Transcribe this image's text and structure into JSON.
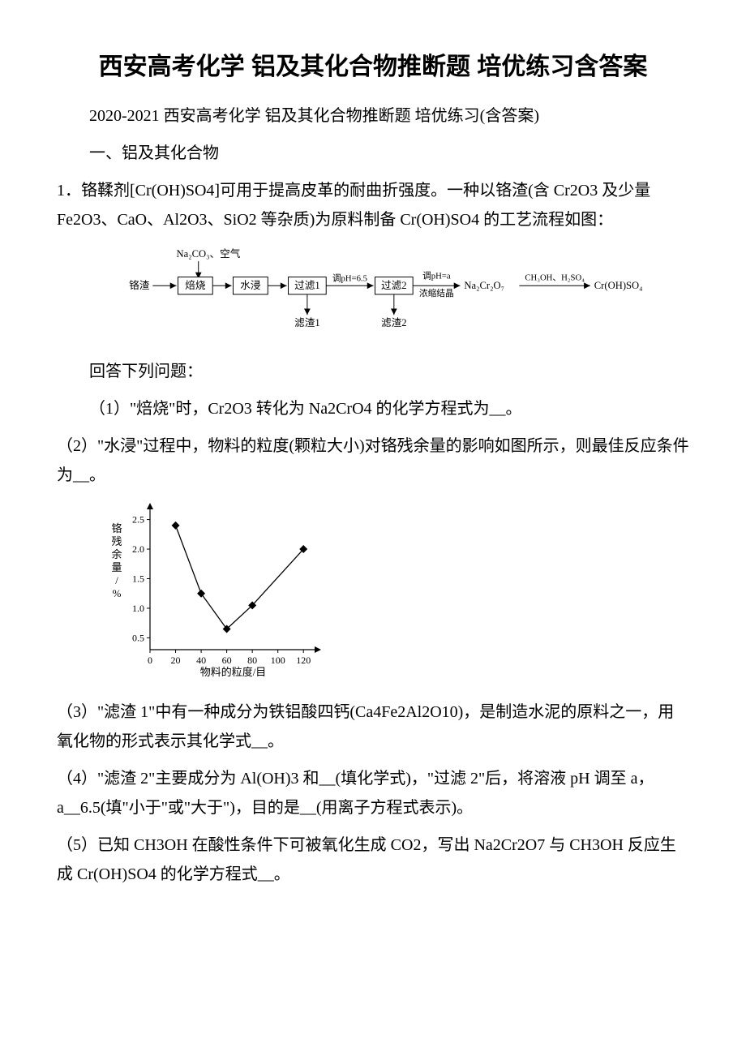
{
  "title": "西安高考化学 铝及其化合物推断题 培优练习含答案",
  "subtitle": "2020-2021 西安高考化学 铝及其化合物推断题 培优练习(含答案)",
  "section_heading": "一、铝及其化合物",
  "q1_intro": "1．铬鞣剂[Cr(OH)SO4]可用于提高皮革的耐曲折强度。一种以铬渣(含 Cr2O3 及少量 Fe2O3、CaO、Al2O3、SiO2 等杂质)为原料制备 Cr(OH)SO4 的工艺流程如图：",
  "flow": {
    "top_input": "Na₂CO₃、空气",
    "start": "铬渣",
    "step1": "焙烧",
    "step2": "水浸",
    "step3": "过滤1",
    "step3_label": "调pH=6.5",
    "step4": "过滤2",
    "step4_label_top": "调pH=a",
    "step4_label_bot": "浓缩结晶",
    "product_mid": "Na₂Cr₂O₇",
    "final_label": "CH₃OH、H₂SO₄",
    "product_final": "Cr(OH)SO₄",
    "residue1": "滤渣1",
    "residue2": "滤渣2"
  },
  "answer_prompt": "回答下列问题：",
  "q1_1": "（1）\"焙烧\"时，Cr2O3 转化为 Na2CrO4 的化学方程式为__。",
  "q1_2": "（2）\"水浸\"过程中，物料的粒度(颗粒大小)对铬残余量的影响如图所示，则最佳反应条件为__。",
  "chart": {
    "type": "line",
    "x_label": "物料的粒度/目",
    "y_label": "铬残余量/%",
    "x_ticks": [
      0,
      20,
      40,
      60,
      80,
      100,
      120
    ],
    "y_ticks": [
      0.5,
      1.0,
      1.5,
      2.0,
      2.5
    ],
    "x_range": [
      0,
      130
    ],
    "y_range": [
      0.3,
      2.7
    ],
    "points": [
      {
        "x": 20,
        "y": 2.4
      },
      {
        "x": 40,
        "y": 1.25
      },
      {
        "x": 60,
        "y": 0.65
      },
      {
        "x": 80,
        "y": 1.05
      },
      {
        "x": 120,
        "y": 2.0
      }
    ],
    "line_color": "#000000",
    "marker": "diamond",
    "marker_size": 5,
    "background": "#ffffff",
    "axis_color": "#000000",
    "font_size": 12
  },
  "q1_3": "（3）\"滤渣 1\"中有一种成分为铁铝酸四钙(Ca4Fe2Al2O10)，是制造水泥的原料之一，用氧化物的形式表示其化学式__。",
  "q1_4": "（4）\"滤渣 2\"主要成分为 Al(OH)3 和__(填化学式)，\"过滤 2\"后，将溶液 pH 调至 a，a__6.5(填\"小于\"或\"大于\")，目的是__(用离子方程式表示)。",
  "q1_5": "（5）已知 CH3OH 在酸性条件下可被氧化生成 CO2，写出 Na2Cr2O7 与 CH3OH 反应生成 Cr(OH)SO4 的化学方程式__。"
}
